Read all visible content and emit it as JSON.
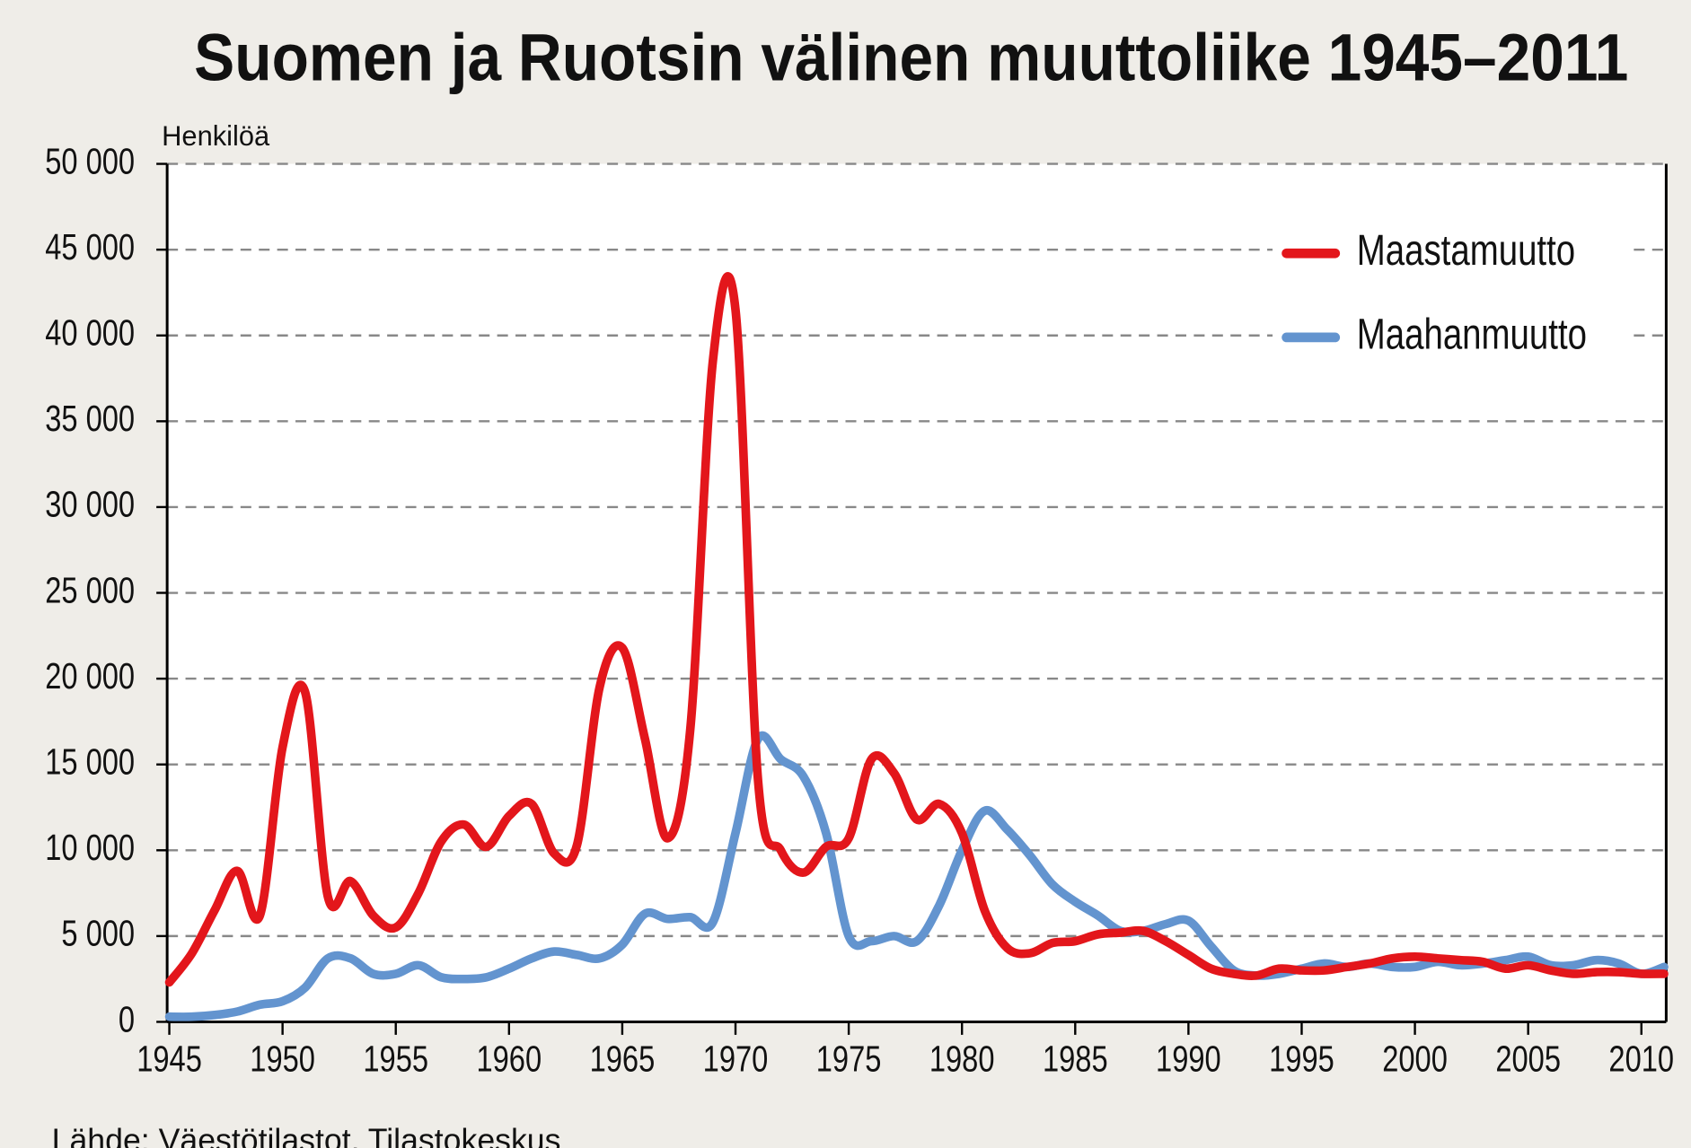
{
  "chart_data": {
    "type": "line",
    "title": "Suomen ja Ruotsin välinen muuttoliike 1945–2011",
    "y_label": "Henkilöä",
    "source": "Lähde: Väestötilastot, Tilastokeskus",
    "x": [
      1945,
      1946,
      1947,
      1948,
      1949,
      1950,
      1951,
      1952,
      1953,
      1954,
      1955,
      1956,
      1957,
      1958,
      1959,
      1960,
      1961,
      1962,
      1963,
      1964,
      1965,
      1966,
      1967,
      1968,
      1969,
      1970,
      1971,
      1972,
      1973,
      1974,
      1975,
      1976,
      1977,
      1978,
      1979,
      1980,
      1981,
      1982,
      1983,
      1984,
      1985,
      1986,
      1987,
      1988,
      1989,
      1990,
      1991,
      1992,
      1993,
      1994,
      1995,
      1996,
      1997,
      1998,
      1999,
      2000,
      2001,
      2002,
      2003,
      2004,
      2005,
      2006,
      2007,
      2008,
      2009,
      2010,
      2011
    ],
    "series": [
      {
        "name": "Maastamuutto",
        "color": "#e3161b",
        "values": [
          2300,
          4000,
          6500,
          8800,
          6200,
          16000,
          19200,
          7300,
          8200,
          6200,
          5500,
          7500,
          10500,
          11500,
          10200,
          12000,
          12700,
          9800,
          10300,
          19500,
          21800,
          16500,
          10700,
          17000,
          38500,
          41500,
          14000,
          10000,
          8700,
          10200,
          10700,
          15300,
          14500,
          11800,
          12700,
          11000,
          6500,
          4300,
          4000,
          4600,
          4700,
          5100,
          5200,
          5300,
          4700,
          3900,
          3100,
          2800,
          2700,
          3100,
          3000,
          3000,
          3200,
          3400,
          3700,
          3800,
          3700,
          3600,
          3500,
          3100,
          3300,
          3000,
          2800,
          2900,
          2900,
          2800,
          2800
        ]
      },
      {
        "name": "Maahanmuutto",
        "color": "#6394cf",
        "values": [
          300,
          300,
          400,
          600,
          1000,
          1200,
          2000,
          3700,
          3700,
          2800,
          2800,
          3300,
          2600,
          2500,
          2600,
          3100,
          3700,
          4100,
          3900,
          3700,
          4500,
          6300,
          6000,
          6100,
          5800,
          11000,
          16500,
          15300,
          14300,
          11000,
          5000,
          4700,
          5000,
          4700,
          6800,
          10000,
          12300,
          11200,
          9700,
          8000,
          7000,
          6200,
          5300,
          5300,
          5700,
          5900,
          4400,
          3000,
          2700,
          2800,
          3100,
          3400,
          3200,
          3400,
          3200,
          3200,
          3500,
          3300,
          3400,
          3600,
          3800,
          3300,
          3300,
          3600,
          3400,
          2800,
          3200
        ]
      }
    ],
    "xlim": [
      1945,
      2011
    ],
    "xticks": [
      1945,
      1950,
      1955,
      1960,
      1965,
      1970,
      1975,
      1980,
      1985,
      1990,
      1995,
      2000,
      2005,
      2010
    ],
    "ylim": [
      0,
      50000
    ],
    "yticks": [
      0,
      {
        "value": 5000,
        "label": "5 000"
      },
      {
        "value": 10000,
        "label": "10 000"
      },
      {
        "value": 15000,
        "label": "15 000"
      },
      {
        "value": 20000,
        "label": "20 000"
      },
      {
        "value": 25000,
        "label": "25 000"
      },
      {
        "value": 30000,
        "label": "30 000"
      },
      {
        "value": 35000,
        "label": "35 000"
      },
      {
        "value": 40000,
        "label": "40 000"
      },
      {
        "value": 45000,
        "label": "45 000"
      },
      {
        "value": 50000,
        "label": "50 000"
      }
    ],
    "grid": true,
    "legend": "upper right"
  }
}
